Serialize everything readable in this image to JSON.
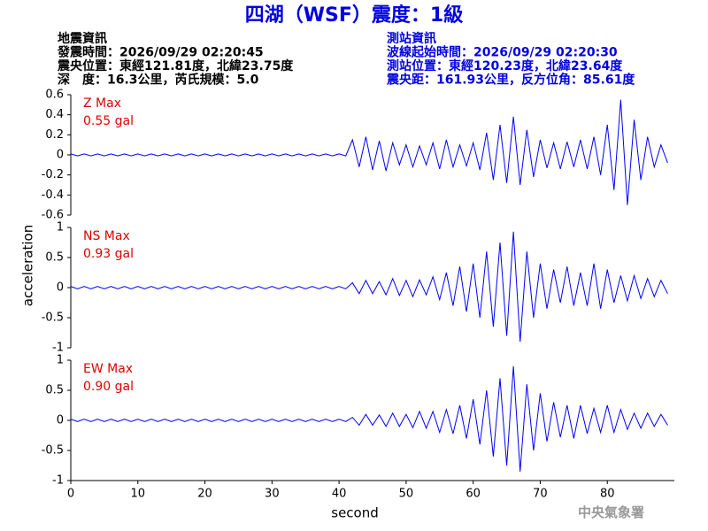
{
  "header": {
    "title": "四湖（WSF）震度：1級",
    "quake_info": [
      "地震資訊",
      "發震時間：2026/09/29 02:20:45",
      "震央位置：東經121.81度，北緯23.75度",
      "深　度：16.3公里，芮氏規模：5.0"
    ],
    "station_info": [
      "測站資訊",
      "波線起始時間：2026/09/29 02:20:30",
      "測站位置：東經120.23度，北緯23.64度",
      "震央距：161.93公里，反方位角：85.61度"
    ],
    "agency": "中央氣象署"
  },
  "chart_data": [
    {
      "type": "line",
      "annotations": [
        "Z Max",
        "0.55 gal"
      ],
      "color": "#0000ff",
      "x": [
        0,
        1,
        2,
        3,
        4,
        5,
        6,
        7,
        8,
        9,
        10,
        11,
        12,
        13,
        14,
        15,
        16,
        17,
        18,
        19,
        20,
        21,
        22,
        23,
        24,
        25,
        26,
        27,
        28,
        29,
        30,
        31,
        32,
        33,
        34,
        35,
        36,
        37,
        38,
        39,
        40,
        41,
        42,
        43,
        44,
        45,
        46,
        47,
        48,
        49,
        50,
        51,
        52,
        53,
        54,
        55,
        56,
        57,
        58,
        59,
        60,
        61,
        62,
        63,
        64,
        65,
        66,
        67,
        68,
        69,
        70,
        71,
        72,
        73,
        74,
        75,
        76,
        77,
        78,
        79,
        80,
        81,
        82,
        83,
        84,
        85,
        86,
        87,
        88,
        89
      ],
      "values": [
        0.01,
        -0.01,
        0.01,
        -0.01,
        0.01,
        -0.01,
        0.01,
        -0.01,
        0.01,
        -0.01,
        0.01,
        -0.01,
        0.01,
        -0.01,
        0.01,
        -0.01,
        0.01,
        -0.01,
        0.01,
        -0.01,
        0.01,
        -0.01,
        0.01,
        -0.01,
        0.01,
        -0.01,
        0.01,
        -0.01,
        0.01,
        -0.01,
        0.01,
        -0.01,
        0.01,
        -0.01,
        0.01,
        -0.01,
        0.01,
        -0.01,
        0.01,
        -0.01,
        0.01,
        -0.01,
        0.15,
        -0.12,
        0.18,
        -0.15,
        0.14,
        -0.16,
        0.12,
        -0.1,
        0.1,
        -0.12,
        0.09,
        -0.1,
        0.12,
        -0.14,
        0.15,
        -0.12,
        0.1,
        -0.11,
        0.12,
        -0.15,
        0.22,
        -0.25,
        0.3,
        -0.28,
        0.38,
        -0.3,
        0.25,
        -0.22,
        0.15,
        -0.13,
        0.12,
        -0.14,
        0.13,
        -0.12,
        0.15,
        -0.14,
        0.18,
        -0.2,
        0.3,
        -0.35,
        0.55,
        -0.5,
        0.35,
        -0.25,
        0.18,
        -0.12,
        0.1,
        -0.08
      ],
      "xlim": [
        0,
        90
      ],
      "ylim": [
        -0.6,
        0.6
      ],
      "yticks": [
        0.6,
        0.4,
        0.2,
        0,
        -0.2,
        -0.4,
        -0.6
      ]
    },
    {
      "type": "line",
      "annotations": [
        "NS Max",
        "0.93 gal"
      ],
      "color": "#0000ff",
      "ylabel": "acceleration",
      "x": [
        0,
        1,
        2,
        3,
        4,
        5,
        6,
        7,
        8,
        9,
        10,
        11,
        12,
        13,
        14,
        15,
        16,
        17,
        18,
        19,
        20,
        21,
        22,
        23,
        24,
        25,
        26,
        27,
        28,
        29,
        30,
        31,
        32,
        33,
        34,
        35,
        36,
        37,
        38,
        39,
        40,
        41,
        42,
        43,
        44,
        45,
        46,
        47,
        48,
        49,
        50,
        51,
        52,
        53,
        54,
        55,
        56,
        57,
        58,
        59,
        60,
        61,
        62,
        63,
        64,
        65,
        66,
        67,
        68,
        69,
        70,
        71,
        72,
        73,
        74,
        75,
        76,
        77,
        78,
        79,
        80,
        81,
        82,
        83,
        84,
        85,
        86,
        87,
        88,
        89
      ],
      "values": [
        0.02,
        -0.02,
        0.02,
        -0.02,
        0.02,
        -0.02,
        0.02,
        -0.02,
        0.02,
        -0.02,
        0.02,
        -0.02,
        0.02,
        -0.02,
        0.02,
        -0.02,
        0.02,
        -0.02,
        0.02,
        -0.02,
        0.02,
        -0.02,
        0.02,
        -0.02,
        0.02,
        -0.02,
        0.02,
        -0.02,
        0.02,
        -0.02,
        0.02,
        -0.02,
        0.02,
        -0.02,
        0.02,
        -0.02,
        0.02,
        -0.02,
        0.02,
        -0.02,
        0.02,
        -0.02,
        0.08,
        -0.1,
        0.12,
        -0.1,
        0.1,
        -0.12,
        0.15,
        -0.13,
        0.12,
        -0.15,
        0.13,
        -0.12,
        0.18,
        -0.2,
        0.25,
        -0.3,
        0.35,
        -0.4,
        0.4,
        -0.5,
        0.6,
        -0.65,
        0.75,
        -0.8,
        0.93,
        -0.9,
        0.6,
        -0.5,
        0.4,
        -0.35,
        0.3,
        -0.25,
        0.35,
        -0.3,
        0.25,
        -0.3,
        0.4,
        -0.35,
        0.3,
        -0.25,
        0.2,
        -0.22,
        0.2,
        -0.18,
        0.15,
        -0.15,
        0.12,
        -0.1
      ],
      "xlim": [
        0,
        90
      ],
      "ylim": [
        -1,
        1
      ],
      "yticks": [
        1,
        0.5,
        0,
        -0.5,
        -1
      ]
    },
    {
      "type": "line",
      "annotations": [
        "EW Max",
        "0.90 gal"
      ],
      "color": "#0000ff",
      "xlabel": "second",
      "x": [
        0,
        1,
        2,
        3,
        4,
        5,
        6,
        7,
        8,
        9,
        10,
        11,
        12,
        13,
        14,
        15,
        16,
        17,
        18,
        19,
        20,
        21,
        22,
        23,
        24,
        25,
        26,
        27,
        28,
        29,
        30,
        31,
        32,
        33,
        34,
        35,
        36,
        37,
        38,
        39,
        40,
        41,
        42,
        43,
        44,
        45,
        46,
        47,
        48,
        49,
        50,
        51,
        52,
        53,
        54,
        55,
        56,
        57,
        58,
        59,
        60,
        61,
        62,
        63,
        64,
        65,
        66,
        67,
        68,
        69,
        70,
        71,
        72,
        73,
        74,
        75,
        76,
        77,
        78,
        79,
        80,
        81,
        82,
        83,
        84,
        85,
        86,
        87,
        88,
        89
      ],
      "values": [
        0.02,
        -0.02,
        0.02,
        -0.02,
        0.02,
        -0.02,
        0.02,
        -0.02,
        0.02,
        -0.02,
        0.02,
        -0.02,
        0.02,
        -0.02,
        0.02,
        -0.02,
        0.02,
        -0.02,
        0.02,
        -0.02,
        0.02,
        -0.02,
        0.02,
        -0.02,
        0.02,
        -0.02,
        0.02,
        -0.02,
        0.02,
        -0.02,
        0.02,
        -0.02,
        0.02,
        -0.02,
        0.02,
        -0.02,
        0.02,
        -0.02,
        0.02,
        -0.02,
        0.02,
        -0.02,
        0.05,
        -0.08,
        0.1,
        -0.08,
        0.09,
        -0.1,
        0.12,
        -0.1,
        0.1,
        -0.12,
        0.15,
        -0.13,
        0.15,
        -0.2,
        0.18,
        -0.22,
        0.25,
        -0.3,
        0.35,
        -0.4,
        0.5,
        -0.6,
        0.7,
        -0.75,
        0.9,
        -0.85,
        0.6,
        -0.5,
        0.45,
        -0.35,
        0.3,
        -0.28,
        0.25,
        -0.3,
        0.25,
        -0.22,
        0.2,
        -0.2,
        0.25,
        -0.2,
        0.18,
        -0.15,
        0.12,
        -0.13,
        0.12,
        -0.1,
        0.1,
        -0.08
      ],
      "xlim": [
        0,
        90
      ],
      "ylim": [
        -1,
        1
      ],
      "yticks": [
        1,
        0.5,
        0,
        -0.5,
        -1
      ],
      "xticks": [
        0,
        10,
        20,
        30,
        40,
        50,
        60,
        70,
        80
      ]
    }
  ]
}
